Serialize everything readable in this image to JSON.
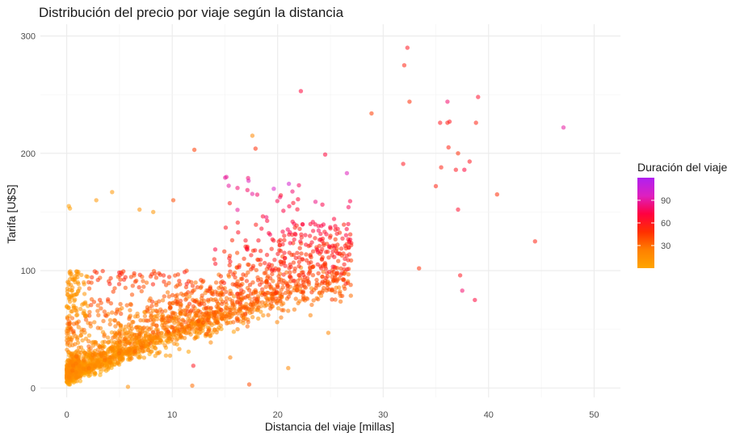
{
  "chart_data": {
    "type": "scatter",
    "title": "Distribución del precio por viaje según la distancia",
    "xlabel": "Distancia del viaje [millas]",
    "ylabel": "Tarifa [U$S]",
    "xlim": [
      -2.5,
      52.5
    ],
    "ylim": [
      -8,
      310
    ],
    "x_ticks": [
      0,
      10,
      20,
      30,
      40,
      50
    ],
    "y_ticks": [
      0,
      100,
      200,
      300
    ],
    "grid": true,
    "legend": {
      "title": "Duración del viaje",
      "placement": "right",
      "ticks": [
        30,
        60,
        90
      ],
      "range": [
        0,
        120
      ],
      "colors": [
        "#FFA500",
        "#FF8000",
        "#FF3000",
        "#FF0040",
        "#DD20C0",
        "#B020F0"
      ]
    },
    "point_color_variable": "trip duration",
    "points_opacity": 0.55,
    "outliers": [
      {
        "x": 32.3,
        "y": 290,
        "d": 60
      },
      {
        "x": 32.0,
        "y": 275,
        "d": 55
      },
      {
        "x": 22.2,
        "y": 253,
        "d": 70
      },
      {
        "x": 32.5,
        "y": 244,
        "d": 50
      },
      {
        "x": 28.9,
        "y": 234,
        "d": 45
      },
      {
        "x": 36.1,
        "y": 244,
        "d": 80
      },
      {
        "x": 39.0,
        "y": 248,
        "d": 65
      },
      {
        "x": 47.1,
        "y": 222,
        "d": 90
      },
      {
        "x": 35.4,
        "y": 226,
        "d": 60
      },
      {
        "x": 36.1,
        "y": 226,
        "d": 55
      },
      {
        "x": 36.3,
        "y": 227,
        "d": 60
      },
      {
        "x": 38.8,
        "y": 226,
        "d": 55
      },
      {
        "x": 36.2,
        "y": 205,
        "d": 55
      },
      {
        "x": 37.1,
        "y": 200,
        "d": 50
      },
      {
        "x": 38.2,
        "y": 193,
        "d": 60
      },
      {
        "x": 35.5,
        "y": 188,
        "d": 55
      },
      {
        "x": 36.9,
        "y": 186,
        "d": 60
      },
      {
        "x": 37.7,
        "y": 186,
        "d": 70
      },
      {
        "x": 35.0,
        "y": 172,
        "d": 55
      },
      {
        "x": 40.8,
        "y": 165,
        "d": 50
      },
      {
        "x": 37.1,
        "y": 152,
        "d": 65
      },
      {
        "x": 44.4,
        "y": 125,
        "d": 55
      },
      {
        "x": 37.3,
        "y": 96,
        "d": 60
      },
      {
        "x": 37.5,
        "y": 83,
        "d": 80
      },
      {
        "x": 38.7,
        "y": 75,
        "d": 70
      },
      {
        "x": 33.4,
        "y": 102,
        "d": 50
      },
      {
        "x": 12.1,
        "y": 203,
        "d": 45
      },
      {
        "x": 17.9,
        "y": 204,
        "d": 50
      },
      {
        "x": 17.6,
        "y": 215,
        "d": 20
      },
      {
        "x": 24.5,
        "y": 199,
        "d": 70
      },
      {
        "x": 31.9,
        "y": 191,
        "d": 60
      },
      {
        "x": 0.2,
        "y": 155,
        "d": 5
      },
      {
        "x": 0.3,
        "y": 153,
        "d": 5
      },
      {
        "x": 4.3,
        "y": 167,
        "d": 10
      },
      {
        "x": 2.8,
        "y": 160,
        "d": 10
      },
      {
        "x": 24.8,
        "y": 47,
        "d": 20
      },
      {
        "x": 21.0,
        "y": 17,
        "d": 20
      },
      {
        "x": 17.3,
        "y": 3,
        "d": 40
      },
      {
        "x": 11.9,
        "y": 2,
        "d": 30
      },
      {
        "x": 15.5,
        "y": 26,
        "d": 25
      },
      {
        "x": 5.8,
        "y": 1,
        "d": 15
      },
      {
        "x": 12.0,
        "y": 19,
        "d": 60
      },
      {
        "x": 10.1,
        "y": 160,
        "d": 40
      },
      {
        "x": 8.2,
        "y": 150,
        "d": 10
      },
      {
        "x": 6.9,
        "y": 152,
        "d": 15
      }
    ]
  }
}
